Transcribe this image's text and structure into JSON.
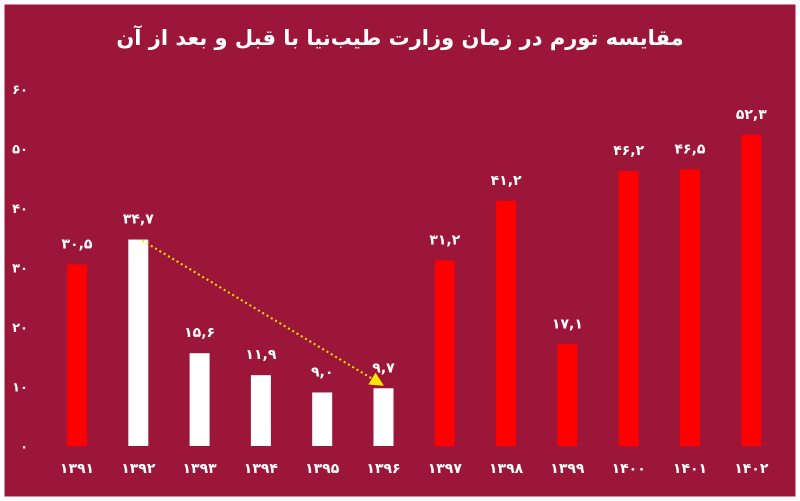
{
  "colors": {
    "background": "#9b1638",
    "frame": "#ffffff",
    "bar_highlight": "#ff0000",
    "bar_other": "#ffffff",
    "arrow": "#ffe600",
    "text": "#ffffff"
  },
  "chart_data": {
    "type": "bar",
    "title": "مقایسه تورم در زمان وزارت طیب‌نیا با قبل و بعد از آن",
    "categories": [
      "۱۳۹۱",
      "۱۳۹۲",
      "۱۳۹۳",
      "۱۳۹۴",
      "۱۳۹۵",
      "۱۳۹۶",
      "۱۳۹۷",
      "۱۳۹۸",
      "۱۳۹۹",
      "۱۴۰۰",
      "۱۴۰۱",
      "۱۴۰۲"
    ],
    "values": [
      30.5,
      34.7,
      15.6,
      11.9,
      9.0,
      9.7,
      31.2,
      41.2,
      17.1,
      46.2,
      46.5,
      52.3
    ],
    "value_labels": [
      "۳۰,۵",
      "۳۴,۷",
      "۱۵,۶",
      "۱۱,۹",
      "۹,۰",
      "۹,۷",
      "۳۱,۲",
      "۴۱,۲",
      "۱۷,۱",
      "۴۶,۲",
      "۴۶,۵",
      "۵۲,۳"
    ],
    "bar_colors": [
      "#ff0000",
      "#ffffff",
      "#ffffff",
      "#ffffff",
      "#ffffff",
      "#ffffff",
      "#ff0000",
      "#ff0000",
      "#ff0000",
      "#ff0000",
      "#ff0000",
      "#ff0000"
    ],
    "ylim": [
      0,
      60
    ],
    "y_ticks": [
      0,
      10,
      20,
      30,
      40,
      50,
      60
    ],
    "y_tick_labels": [
      "۰",
      "۱۰",
      "۲۰",
      "۳۰",
      "۴۰",
      "۵۰",
      "۶۰"
    ],
    "grid": false,
    "legend": "none",
    "annotation": {
      "type": "dotted-arrow",
      "from_category": "۱۳۹۲",
      "from_value": 34.7,
      "to_category": "۱۳۹۶",
      "to_value": 9.7
    }
  }
}
